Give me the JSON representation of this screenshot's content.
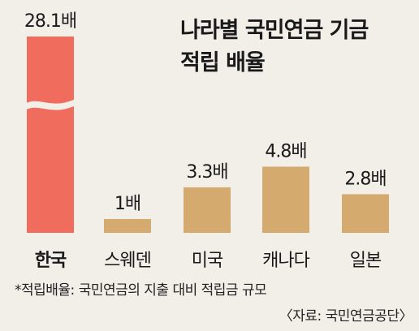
{
  "chart_data": {
    "type": "bar",
    "title_lines": [
      "나라별 국민연금 기금",
      "적립 배율"
    ],
    "categories": [
      "한국",
      "스웨덴",
      "미국",
      "캐나다",
      "일본"
    ],
    "values": [
      28.1,
      1,
      3.3,
      4.8,
      2.8
    ],
    "value_labels": [
      "28.1배",
      "1배",
      "3.3배",
      "4.8배",
      "2.8배"
    ],
    "broken_axis_category": "한국",
    "colors": {
      "highlight": "#f06c5c",
      "default": "#d5aa6e",
      "break": "#f2efe9"
    },
    "footnote": "*적립배율: 국민연금의 지출 대비 적립금 규모",
    "source": "〈자료: 국민연금공단〉"
  }
}
